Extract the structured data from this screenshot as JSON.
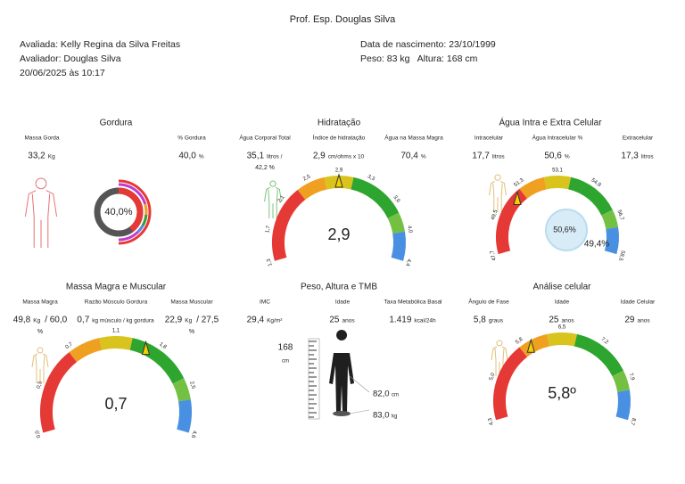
{
  "header": {
    "title": "Prof. Esp. Douglas Silva",
    "evaluated": "Avaliada: Kelly Regina da Silva Freitas",
    "evaluator": "Avaliador: Douglas Silva",
    "datetime": "20/06/2025 às 10:17",
    "birth": "Data de nascimento: 23/10/1999",
    "weight_height": "Peso: 83 kg   Altura: 168 cm"
  },
  "panels": [
    {
      "title": "Gordura",
      "metrics": [
        {
          "label": "Massa Gorda",
          "value": "33,2",
          "unit": "Kg"
        },
        {
          "label": "% Gordura",
          "value": "40,0",
          "unit": "%"
        }
      ],
      "donut": "40,0%"
    },
    {
      "title": "Hidratação",
      "metrics": [
        {
          "label": "Água Corporal Total",
          "value": "35,1",
          "unit": "litros /",
          "below": "42,2 %"
        },
        {
          "label": "Índice de hidratação",
          "value": "2,9",
          "unit": "cm/ohms x 10"
        },
        {
          "label": "Água na Massa Magra",
          "value": "70,4",
          "unit": "%"
        }
      ],
      "gauge": {
        "ticks": [
          "1,3",
          "1,7",
          "2,1",
          "2,5",
          "2,9",
          "3,3",
          "3,6",
          "4,0",
          "4,4"
        ],
        "value": "2,9"
      }
    },
    {
      "title": "Água Intra e Extra Celular",
      "metrics": [
        {
          "label": "Intracelular",
          "value": "17,7",
          "unit": "litros"
        },
        {
          "label": "Água Intracelular %",
          "value": "50,6",
          "unit": "%"
        },
        {
          "label": "Extracelular",
          "value": "17,3",
          "unit": "litros"
        }
      ],
      "gauge": {
        "ticks": [
          "47,7",
          "49,5",
          "51,3",
          "53,1",
          "54,9",
          "56,7",
          "58,5"
        ]
      },
      "bubble": {
        "inner": "50,6%",
        "outer": "49,4%"
      }
    },
    {
      "title": "Massa Magra e Muscular",
      "metrics": [
        {
          "label": "Massa Magra",
          "value": "49,8",
          "unit": "Kg",
          "tail": "/ 60,0",
          "below": "%"
        },
        {
          "label": "Razão Músculo Gordura",
          "value": "0,7",
          "unit": "kg músculo / kg gordura"
        },
        {
          "label": "Massa Muscular",
          "value": "22,9",
          "unit": "Kg",
          "tail": "/ 27,5",
          "below": "%"
        }
      ],
      "gauge": {
        "ticks": [
          "0,0",
          "0,5",
          "0,7",
          "1,1",
          "1,8",
          "2,5",
          "4,6"
        ],
        "value": "0,7"
      }
    },
    {
      "title": "Peso, Altura e TMB",
      "metrics": [
        {
          "label": "IMC",
          "value": "29,4",
          "unit": "Kg/m²"
        },
        {
          "label": "Idade",
          "value": "25",
          "unit": "anos"
        },
        {
          "label": "Taxa Metabólica Basal",
          "value": "1.419",
          "unit": "kcal/24h"
        }
      ],
      "height": {
        "value": "168",
        "unit": "cm"
      },
      "waist": {
        "value": "82,0",
        "unit": "cm"
      },
      "weight": {
        "value": "83,0",
        "unit": "kg"
      }
    },
    {
      "title": "Análise celular",
      "metrics": [
        {
          "label": "Ângulo de Fase",
          "value": "5,8",
          "unit": "graus"
        },
        {
          "label": "Idade",
          "value": "25",
          "unit": "anos"
        },
        {
          "label": "Idade Celular",
          "value": "29",
          "unit": "anos"
        }
      ],
      "gauge": {
        "ticks": [
          "4,3",
          "5,0",
          "5,8",
          "6,5",
          "7,2",
          "7,9",
          "8,7"
        ],
        "value": "5,8º"
      }
    }
  ]
}
